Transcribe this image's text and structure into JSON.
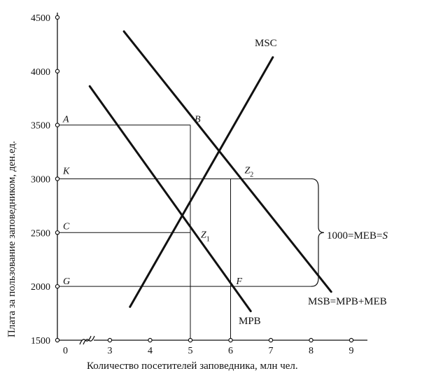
{
  "chart_data": {
    "type": "line",
    "title": "",
    "xlabel": "Количество посетителей заповедника, млн чел.",
    "ylabel": "Плата за пользование заповедником, ден.ед.",
    "x_ticks": [
      "0",
      "3",
      "4",
      "5",
      "6",
      "7",
      "8",
      "9"
    ],
    "y_ticks": [
      "1500",
      "2000",
      "2500",
      "3000",
      "3500",
      "4000",
      "4500"
    ],
    "xlim": [
      2,
      9.5
    ],
    "ylim": [
      1500,
      4500
    ],
    "axis_break": true,
    "grid": false,
    "series": [
      {
        "name": "MSC",
        "x": [
          3.5,
          7.05
        ],
        "y": [
          1810,
          4130
        ]
      },
      {
        "name": "MPB",
        "x": [
          2.5,
          6.5
        ],
        "y": [
          3860,
          1770
        ]
      },
      {
        "name": "MSB=MPB+MEB",
        "x": [
          3.35,
          8.5
        ],
        "y": [
          4370,
          1950
        ]
      }
    ],
    "points": [
      {
        "label": "A",
        "x": 0,
        "y": 3500
      },
      {
        "label": "B",
        "x": 5,
        "y": 3500
      },
      {
        "label": "K",
        "x": 0,
        "y": 3000
      },
      {
        "label": "Z",
        "sub": "2",
        "x": 6,
        "y": 3000
      },
      {
        "label": "C",
        "x": 0,
        "y": 2500
      },
      {
        "label": "Z",
        "sub": "1",
        "x": 5,
        "y": 2500
      },
      {
        "label": "G",
        "x": 0,
        "y": 2000
      },
      {
        "label": "F",
        "x": 6,
        "y": 2000
      }
    ],
    "annotation": {
      "text": "1000=MEB=",
      "text_italic": "S"
    }
  }
}
